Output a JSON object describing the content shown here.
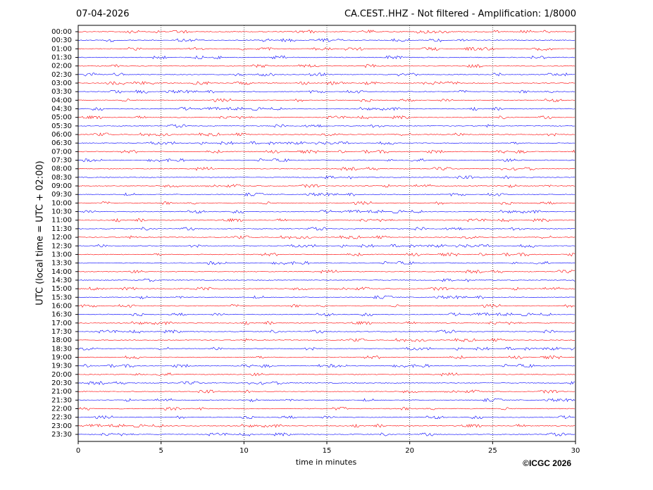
{
  "chart_data": {
    "type": "helicorder",
    "title": "CA.CEST..HHZ - Not filtered - Amplification: 1/8000",
    "date": "07-04-2026",
    "ylabel": "UTC (local time = UTC + 02:00)",
    "xlabel": "time in minutes",
    "copyright": "©ICGC 2026",
    "xlim": [
      0,
      30
    ],
    "xticks": [
      0,
      5,
      10,
      15,
      20,
      25,
      30
    ],
    "grid": true,
    "colors": [
      "#ff0000",
      "#0000ff"
    ],
    "categories": [
      "00:00",
      "00:30",
      "01:00",
      "01:30",
      "02:00",
      "02:30",
      "03:00",
      "03:30",
      "04:00",
      "04:30",
      "05:00",
      "05:30",
      "06:00",
      "06:30",
      "07:00",
      "07:30",
      "08:00",
      "08:30",
      "09:00",
      "09:30",
      "10:00",
      "10:30",
      "11:00",
      "11:30",
      "12:00",
      "12:30",
      "13:00",
      "13:30",
      "14:00",
      "14:30",
      "15:00",
      "15:30",
      "16:00",
      "16:30",
      "17:00",
      "17:30",
      "18:00",
      "18:30",
      "19:00",
      "19:30",
      "20:00",
      "20:30",
      "21:00",
      "21:30",
      "22:00",
      "22:30",
      "23:00",
      "23:30"
    ]
  }
}
